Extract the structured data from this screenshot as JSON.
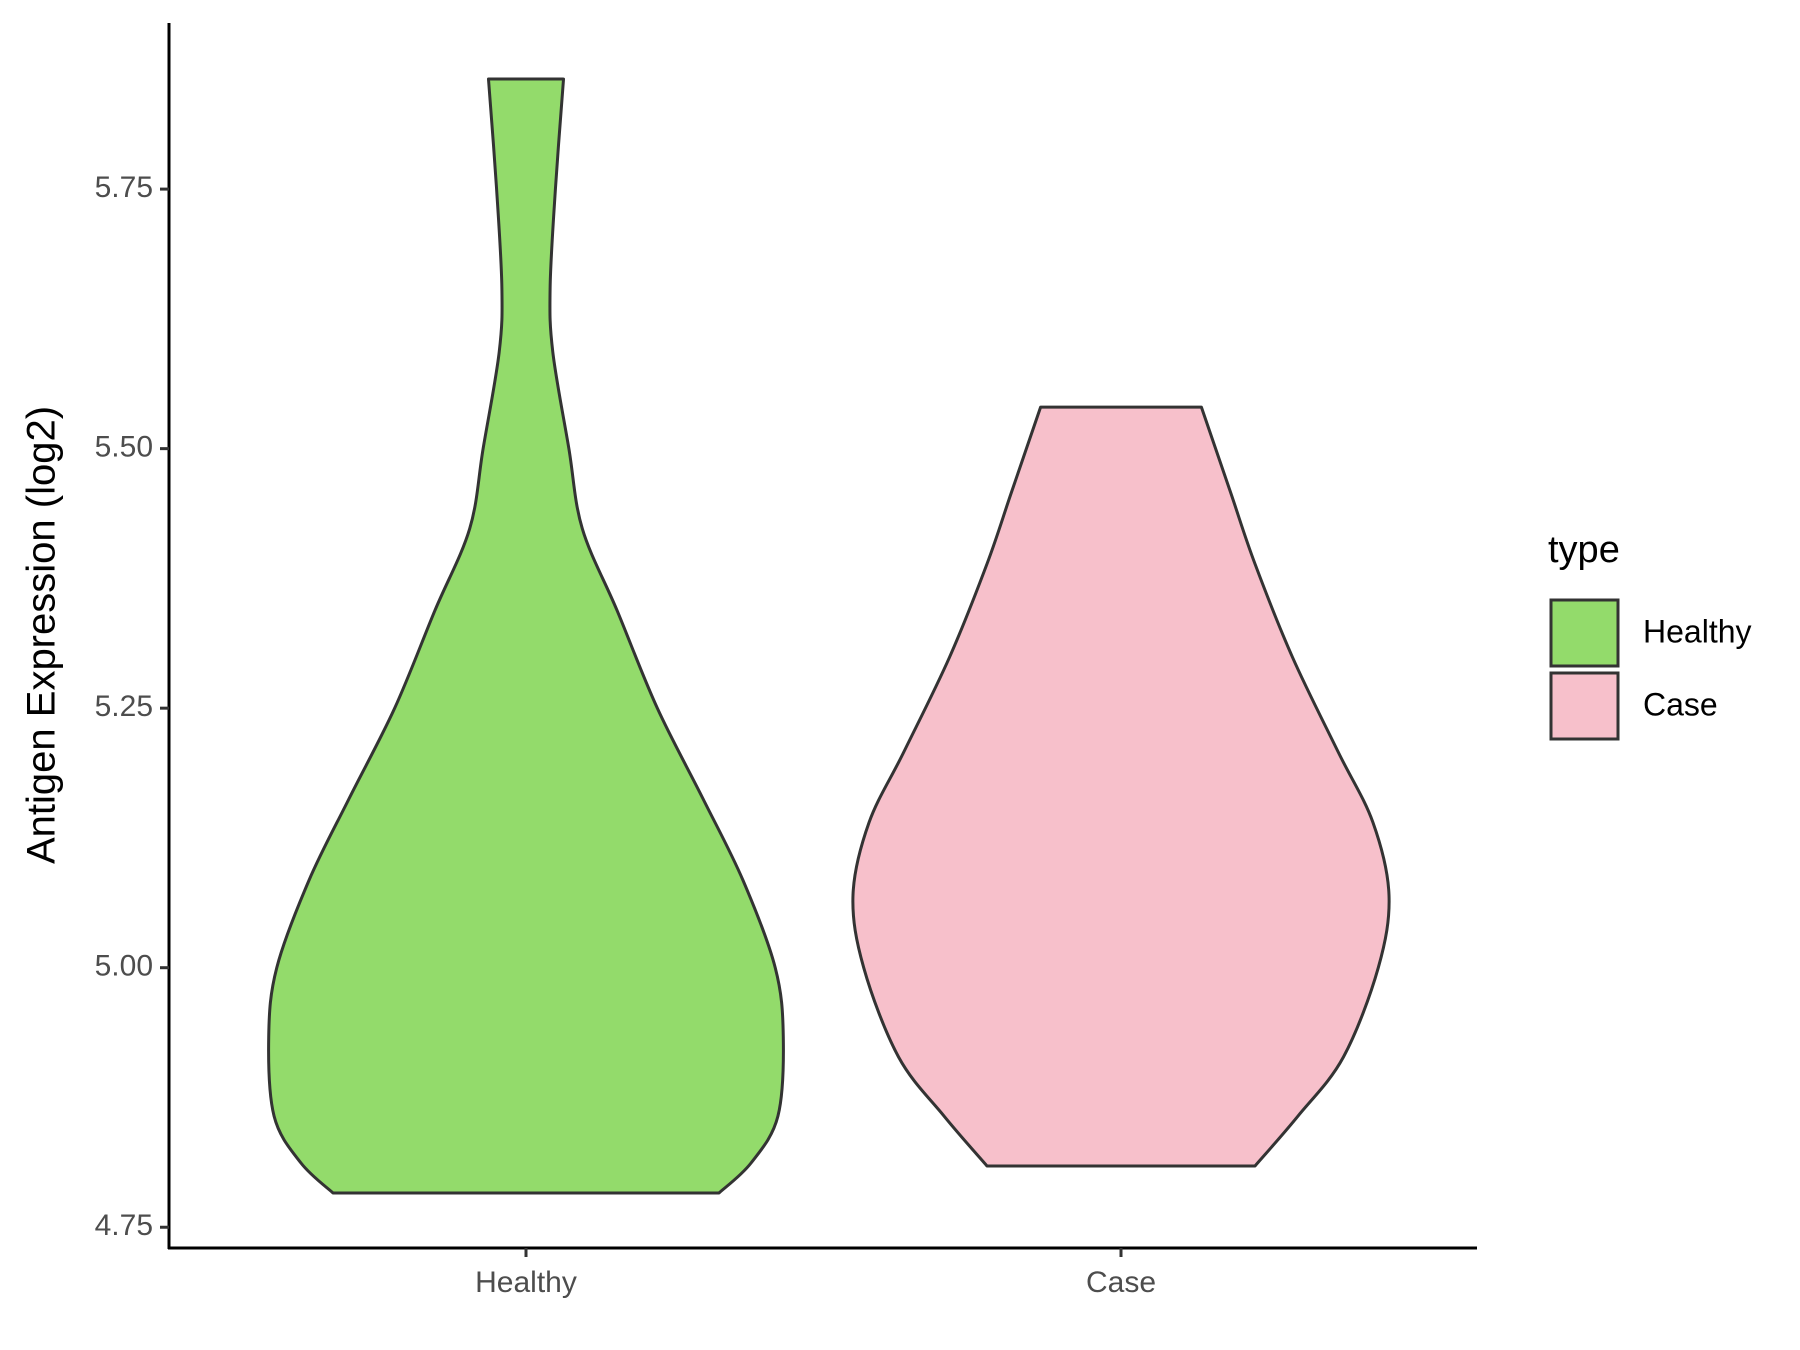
{
  "chart_data": {
    "type": "violin",
    "y_label": "Antigen Expression (log2)",
    "categories": [
      "Healthy",
      "Case"
    ],
    "series": [
      {
        "name": "Healthy",
        "color": "#93DB6B",
        "y": [
          4.783,
          4.812,
          4.857,
          4.934,
          5.0,
          5.084,
          5.163,
          5.25,
          5.344,
          5.423,
          5.5,
          5.593,
          5.655,
          5.751,
          5.856
        ],
        "density": [
          0.72,
          0.84,
          0.94,
          0.96,
          0.93,
          0.81,
          0.66,
          0.49,
          0.34,
          0.21,
          0.16,
          0.1,
          0.09,
          0.11,
          0.14
        ]
      },
      {
        "name": "Case",
        "color": "#F7C0CB",
        "y": [
          4.809,
          4.857,
          4.914,
          5.0,
          5.07,
          5.14,
          5.208,
          5.299,
          5.389,
          5.457,
          5.54
        ],
        "density": [
          0.5,
          0.66,
          0.83,
          0.96,
          1.0,
          0.94,
          0.81,
          0.64,
          0.5,
          0.41,
          0.3
        ]
      }
    ],
    "ylim": [
      4.73,
      5.91
    ],
    "yticks": [
      {
        "value": 4.75,
        "label": "4.75"
      },
      {
        "value": 5.0,
        "label": "5.00"
      },
      {
        "value": 5.25,
        "label": "5.25"
      },
      {
        "value": 5.5,
        "label": "5.50"
      },
      {
        "value": 5.75,
        "label": "5.75"
      }
    ],
    "legend": {
      "title": "type",
      "position": "right"
    },
    "grid": false
  }
}
